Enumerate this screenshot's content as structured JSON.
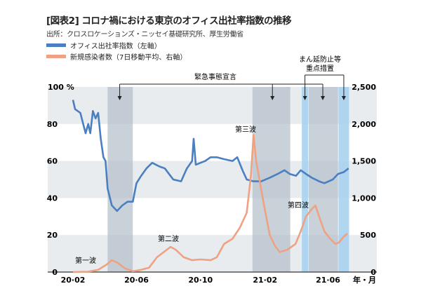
{
  "title": "[図表2] コロナ禍における東京のオフィス出社率指数の推移",
  "source": "出所：クロスロケーションズ・ニッセイ基礎研究所、厚生労働省",
  "colors": {
    "office": "#4a7fc1",
    "infections": "#eea283",
    "band": "#e8ecef",
    "emergency": "#b7c2cc",
    "mannen": "#a9d2ee"
  },
  "chart_data": {
    "type": "line",
    "title": "",
    "xlabel": "年・月",
    "x_ticks": [
      "20·02",
      "20·06",
      "20·10",
      "21·02",
      "21·06"
    ],
    "left_axis": {
      "label_unit": "%",
      "ticks": [
        "100",
        "80",
        "60",
        "40",
        "20",
        "0"
      ],
      "ylim": [
        0,
        100
      ]
    },
    "right_axis": {
      "ticks": [
        "2,500",
        "2,000",
        "1,500",
        "1,000",
        "500",
        "0"
      ],
      "ylim": [
        0,
        2500
      ]
    },
    "grid": "horizontal bands",
    "legend_position": "top-left",
    "series": [
      {
        "name": "オフィス出社率指数（左軸）",
        "axis": "left",
        "color": "#4a7fc1",
        "points": [
          [
            "2020-02-01",
            93
          ],
          [
            "2020-02-05",
            88
          ],
          [
            "2020-02-15",
            86
          ],
          [
            "2020-02-25",
            75
          ],
          [
            "2020-03-01",
            80
          ],
          [
            "2020-03-05",
            75
          ],
          [
            "2020-03-10",
            87
          ],
          [
            "2020-03-15",
            83
          ],
          [
            "2020-03-20",
            86
          ],
          [
            "2020-03-25",
            72
          ],
          [
            "2020-03-30",
            62
          ],
          [
            "2020-04-03",
            60
          ],
          [
            "2020-04-07",
            45
          ],
          [
            "2020-04-15",
            36
          ],
          [
            "2020-04-25",
            33
          ],
          [
            "2020-05-05",
            36
          ],
          [
            "2020-05-15",
            38
          ],
          [
            "2020-05-25",
            38
          ],
          [
            "2020-06-01",
            48
          ],
          [
            "2020-06-10",
            52
          ],
          [
            "2020-06-20",
            56
          ],
          [
            "2020-07-01",
            59
          ],
          [
            "2020-07-15",
            57
          ],
          [
            "2020-07-25",
            56
          ],
          [
            "2020-08-10",
            50
          ],
          [
            "2020-08-25",
            49
          ],
          [
            "2020-09-05",
            56
          ],
          [
            "2020-09-15",
            60
          ],
          [
            "2020-09-18",
            72
          ],
          [
            "2020-09-22",
            58
          ],
          [
            "2020-10-01",
            59
          ],
          [
            "2020-10-10",
            60
          ],
          [
            "2020-10-20",
            62
          ],
          [
            "2020-11-01",
            62
          ],
          [
            "2020-11-15",
            61
          ],
          [
            "2020-12-01",
            60
          ],
          [
            "2020-12-10",
            62
          ],
          [
            "2020-12-20",
            55
          ],
          [
            "2020-12-28",
            50
          ],
          [
            "2021-01-10",
            49
          ],
          [
            "2021-01-25",
            49
          ],
          [
            "2021-02-10",
            51
          ],
          [
            "2021-02-25",
            53
          ],
          [
            "2021-03-10",
            55
          ],
          [
            "2021-03-20",
            53
          ],
          [
            "2021-04-01",
            52
          ],
          [
            "2021-04-10",
            55
          ],
          [
            "2021-04-20",
            53
          ],
          [
            "2021-05-01",
            51
          ],
          [
            "2021-05-15",
            49
          ],
          [
            "2021-05-25",
            48
          ],
          [
            "2021-06-10",
            50
          ],
          [
            "2021-06-20",
            53
          ],
          [
            "2021-07-01",
            54
          ],
          [
            "2021-07-10",
            56
          ]
        ]
      },
      {
        "name": "新規感染者数（7日移動平均、右軸）",
        "axis": "right",
        "color": "#eea283",
        "points": [
          [
            "2020-02-01",
            0
          ],
          [
            "2020-03-01",
            5
          ],
          [
            "2020-03-20",
            30
          ],
          [
            "2020-04-05",
            100
          ],
          [
            "2020-04-15",
            160
          ],
          [
            "2020-04-25",
            130
          ],
          [
            "2020-05-10",
            50
          ],
          [
            "2020-05-25",
            10
          ],
          [
            "2020-06-10",
            30
          ],
          [
            "2020-06-25",
            60
          ],
          [
            "2020-07-10",
            200
          ],
          [
            "2020-07-25",
            280
          ],
          [
            "2020-08-05",
            340
          ],
          [
            "2020-08-15",
            300
          ],
          [
            "2020-08-30",
            200
          ],
          [
            "2020-09-15",
            160
          ],
          [
            "2020-10-01",
            170
          ],
          [
            "2020-10-20",
            160
          ],
          [
            "2020-11-01",
            200
          ],
          [
            "2020-11-15",
            380
          ],
          [
            "2020-12-01",
            450
          ],
          [
            "2020-12-15",
            600
          ],
          [
            "2020-12-28",
            800
          ],
          [
            "2021-01-05",
            1300
          ],
          [
            "2021-01-10",
            1850
          ],
          [
            "2021-01-15",
            1500
          ],
          [
            "2021-01-20",
            1300
          ],
          [
            "2021-01-30",
            900
          ],
          [
            "2021-02-10",
            500
          ],
          [
            "2021-02-20",
            350
          ],
          [
            "2021-03-01",
            270
          ],
          [
            "2021-03-15",
            300
          ],
          [
            "2021-03-31",
            380
          ],
          [
            "2021-04-10",
            550
          ],
          [
            "2021-04-20",
            750
          ],
          [
            "2021-05-01",
            850
          ],
          [
            "2021-05-08",
            900
          ],
          [
            "2021-05-15",
            750
          ],
          [
            "2021-05-25",
            550
          ],
          [
            "2021-06-05",
            450
          ],
          [
            "2021-06-15",
            380
          ],
          [
            "2021-06-22",
            400
          ],
          [
            "2021-07-01",
            480
          ],
          [
            "2021-07-08",
            520
          ]
        ]
      }
    ],
    "periods": [
      {
        "type": "emergency",
        "start": "2020-04-07",
        "end": "2020-05-25"
      },
      {
        "type": "emergency",
        "start": "2021-01-08",
        "end": "2021-03-21"
      },
      {
        "type": "mannen",
        "start": "2021-04-12",
        "end": "2021-04-24"
      },
      {
        "type": "emergency",
        "start": "2021-04-25",
        "end": "2021-06-20"
      },
      {
        "type": "mannen",
        "start": "2021-06-21",
        "end": "2021-07-11"
      }
    ],
    "annotations": {
      "emergency": "緊急事態宣言",
      "mannen_1": "まん延防止等",
      "mannen_2": "重点措置",
      "waves": [
        {
          "label": "第一波",
          "date": "2020-04-01",
          "value": 0
        },
        {
          "label": "第二波",
          "date": "2020-08-01",
          "value": 14
        },
        {
          "label": "第三波",
          "date": "2021-01-02",
          "value": 77
        },
        {
          "label": "第四波",
          "date": "2021-04-18",
          "value": 36
        }
      ]
    }
  }
}
